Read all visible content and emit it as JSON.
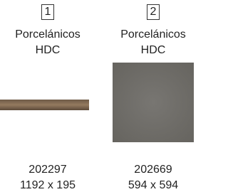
{
  "items": [
    {
      "number": "1",
      "brand": "Porcelánicos",
      "line": "HDC",
      "code": "202297",
      "size": "1192 x 195"
    },
    {
      "number": "2",
      "brand": "Porcelánicos",
      "line": "HDC",
      "code": "202669",
      "size": "594 x 594"
    }
  ]
}
